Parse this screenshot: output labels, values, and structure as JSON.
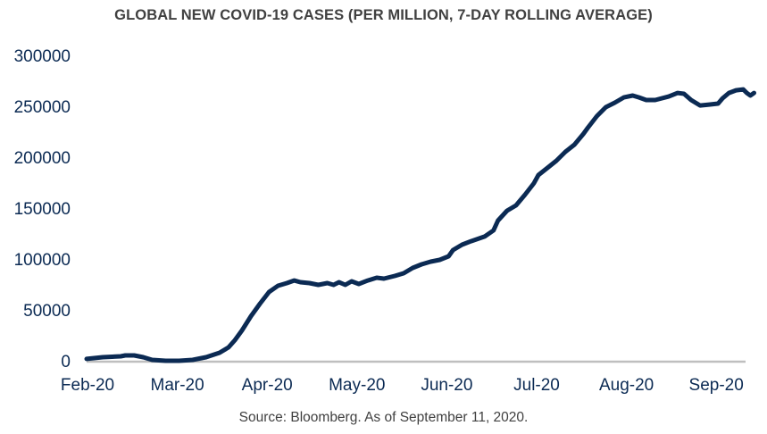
{
  "chart_data": {
    "type": "line",
    "title": "GLOBAL NEW COVID-19 CASES (PER MILLION, 7-DAY ROLLING AVERAGE)",
    "xlabel": "",
    "ylabel": "",
    "ylim": [
      0,
      300000
    ],
    "yticks": [
      "300000",
      "250000",
      "200000",
      "150000",
      "100000",
      "50000",
      "0"
    ],
    "ytick_values": [
      300000,
      250000,
      200000,
      150000,
      100000,
      50000,
      0
    ],
    "xticks": [
      "Feb-20",
      "Mar-20",
      "Apr-20",
      "May-20",
      "Jun-20",
      "Jul-20",
      "Aug-20",
      "Sep-20"
    ],
    "xlim_months": [
      0,
      7.45
    ],
    "grid": false,
    "legend": "none",
    "line_color": "#0b2a53",
    "axis_color": "#bfbfbf",
    "series": [
      {
        "name": "Global new COVID-19 cases (7-day rolling average)",
        "x_months": [
          0.0,
          0.18,
          0.38,
          0.43,
          0.53,
          0.63,
          0.73,
          0.88,
          1.03,
          1.18,
          1.33,
          1.48,
          1.58,
          1.65,
          1.73,
          1.83,
          1.93,
          2.03,
          2.13,
          2.23,
          2.31,
          2.38,
          2.48,
          2.58,
          2.68,
          2.75,
          2.81,
          2.88,
          2.95,
          3.03,
          3.13,
          3.23,
          3.31,
          3.43,
          3.53,
          3.63,
          3.73,
          3.83,
          3.93,
          4.03,
          4.08,
          4.18,
          4.28,
          4.43,
          4.53,
          4.58,
          4.68,
          4.78,
          4.88,
          4.98,
          5.03,
          5.13,
          5.23,
          5.33,
          5.43,
          5.53,
          5.58,
          5.68,
          5.78,
          5.88,
          5.98,
          6.08,
          6.15,
          6.23,
          6.33,
          6.48,
          6.58,
          6.65,
          6.73,
          6.83,
          6.93,
          7.03,
          7.08,
          7.15,
          7.23,
          7.31,
          7.35,
          7.39,
          7.43
        ],
        "values": [
          1800,
          3500,
          4400,
          5300,
          5300,
          3500,
          900,
          0,
          0,
          900,
          3500,
          7900,
          13200,
          20200,
          29800,
          43900,
          56100,
          67500,
          73700,
          76300,
          78900,
          77200,
          76300,
          74600,
          76300,
          74600,
          77200,
          74600,
          78100,
          75400,
          78900,
          81600,
          80700,
          83300,
          86000,
          91200,
          94700,
          97400,
          99100,
          102600,
          108800,
          114000,
          117500,
          122000,
          128100,
          137700,
          147400,
          152600,
          163100,
          174500,
          182500,
          189500,
          196500,
          205300,
          212300,
          222800,
          228900,
          240300,
          249100,
          253500,
          258700,
          260500,
          258700,
          256100,
          256100,
          259600,
          263100,
          262300,
          256100,
          250800,
          251700,
          252600,
          257800,
          263100,
          265700,
          266600,
          263100,
          260500,
          263100
        ]
      }
    ]
  },
  "source": "Source: Bloomberg. As of September 11, 2020."
}
